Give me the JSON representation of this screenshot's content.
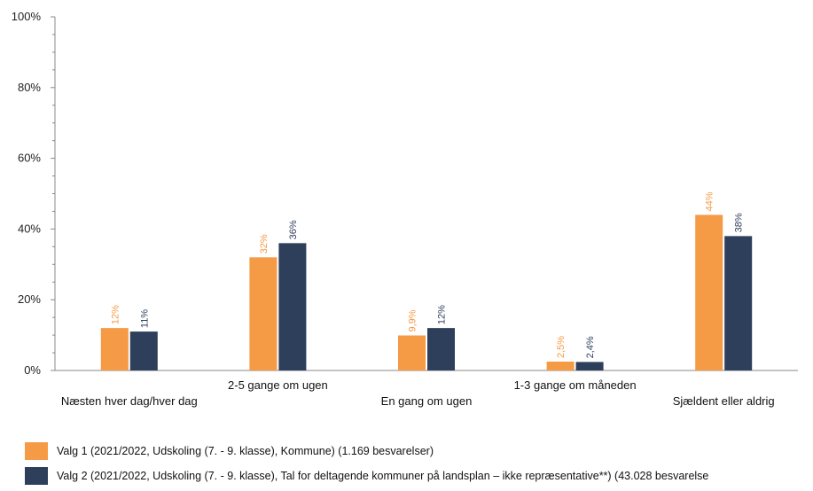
{
  "chart_data": {
    "type": "bar",
    "categories": [
      "Næsten hver dag/hver dag",
      "2-5 gange om ugen",
      "En gang om ugen",
      "1-3 gange om måneden",
      "Sjældent eller aldrig"
    ],
    "series": [
      {
        "name": "Valg 1 (2021/2022, Udskoling (7. - 9. klasse), Kommune) (1.169 besvarelser)",
        "color": "#f59a45",
        "values": [
          12,
          32,
          9.9,
          2.5,
          44
        ],
        "labels": [
          "12%",
          "32%",
          "9,9%",
          "2,5%",
          "44%"
        ]
      },
      {
        "name": "Valg 2 (2021/2022, Udskoling (7. - 9. klasse), Tal for deltagende kommuner på landsplan – ikke repræsentative**) (43.028 besvarelse",
        "color": "#2e3f5c",
        "values": [
          11,
          36,
          12,
          2.4,
          38
        ],
        "labels": [
          "11%",
          "36%",
          "12%",
          "2,4%",
          "38%"
        ]
      }
    ],
    "yticks": [
      "0%",
      "20%",
      "40%",
      "60%",
      "80%",
      "100%"
    ],
    "ylim": [
      0,
      100
    ],
    "grid": false,
    "legend_position": "bottom"
  }
}
